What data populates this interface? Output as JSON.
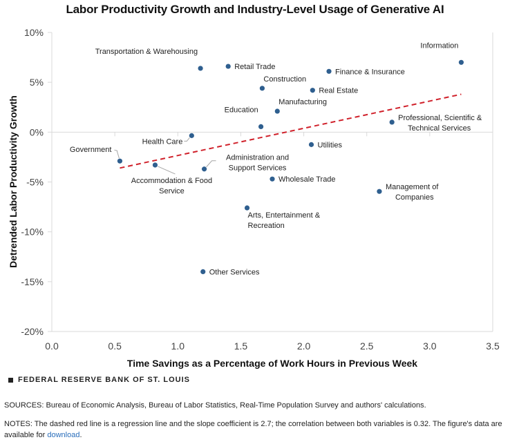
{
  "chart_data": {
    "type": "scatter",
    "title": "Labor Productivity Growth and Industry-Level Usage of Generative AI",
    "xlabel": "Time Savings as a Percentage of Work Hours in Previous Week",
    "ylabel": "Detrended Labor Productivity Growth",
    "xlim": [
      0.0,
      3.5
    ],
    "ylim": [
      -20,
      10
    ],
    "x_ticks": [
      0.0,
      0.5,
      1.0,
      1.5,
      2.0,
      2.5,
      3.0,
      3.5
    ],
    "x_tick_labels": [
      "0.0",
      "0.5",
      "1.0",
      "1.5",
      "2.0",
      "2.5",
      "3.0",
      "3.5"
    ],
    "y_ticks": [
      10,
      5,
      0,
      -5,
      -10,
      -15,
      -20
    ],
    "y_tick_labels": [
      "10%",
      "5%",
      "0%",
      "-5%",
      "-10%",
      "-15%",
      "-20%"
    ],
    "grid": false,
    "point_color": "#2f5f8f",
    "points": [
      {
        "name": "Transportation & Warehousing",
        "x": 1.18,
        "y": 6.4,
        "label_lines": [
          "Transportation & Warehousing"
        ],
        "label_pos": "top-left"
      },
      {
        "name": "Retail Trade",
        "x": 1.4,
        "y": 6.6,
        "label_lines": [
          "Retail Trade"
        ],
        "label_pos": "right"
      },
      {
        "name": "Finance & Insurance",
        "x": 2.2,
        "y": 6.1,
        "label_lines": [
          "Finance & Insurance"
        ],
        "label_pos": "right"
      },
      {
        "name": "Information",
        "x": 3.25,
        "y": 7.0,
        "label_lines": [
          "Information"
        ],
        "label_pos": "top-left"
      },
      {
        "name": "Construction",
        "x": 1.67,
        "y": 4.4,
        "label_lines": [
          "Construction"
        ],
        "label_pos": "top-right"
      },
      {
        "name": "Real Estate",
        "x": 2.07,
        "y": 4.2,
        "label_lines": [
          "Real Estate"
        ],
        "label_pos": "right"
      },
      {
        "name": "Manufacturing",
        "x": 1.79,
        "y": 2.1,
        "label_lines": [
          "Manufacturing"
        ],
        "label_pos": "top-right"
      },
      {
        "name": "Education",
        "x": 1.66,
        "y": 0.55,
        "label_lines": [
          "Education"
        ],
        "label_pos": "top-left"
      },
      {
        "name": "Professional, Scientific & Technical Services",
        "x": 2.7,
        "y": 1.0,
        "label_lines": [
          "Professional, Scientific &",
          "Technical Services"
        ],
        "label_pos": "right"
      },
      {
        "name": "Health Care",
        "x": 1.11,
        "y": -0.35,
        "label_lines": [
          "Health Care"
        ],
        "label_pos": "left-leader"
      },
      {
        "name": "Utilities",
        "x": 2.06,
        "y": -1.25,
        "label_lines": [
          "Utilities"
        ],
        "label_pos": "right"
      },
      {
        "name": "Government",
        "x": 0.54,
        "y": -2.9,
        "label_lines": [
          "Government"
        ],
        "label_pos": "top-left-leader"
      },
      {
        "name": "Accommodation & Food Service",
        "x": 0.82,
        "y": -3.3,
        "label_lines": [
          "Accommodation  & Food",
          "Service"
        ],
        "label_pos": "bottom-leader"
      },
      {
        "name": "Administration and Support Services",
        "x": 1.21,
        "y": -3.7,
        "label_lines": [
          "Administration and",
          "Support  Services"
        ],
        "label_pos": "top-right-leader"
      },
      {
        "name": "Wholesale Trade",
        "x": 1.75,
        "y": -4.7,
        "label_lines": [
          "Wholesale Trade"
        ],
        "label_pos": "right"
      },
      {
        "name": "Management of Companies",
        "x": 2.6,
        "y": -5.95,
        "label_lines": [
          "Management of",
          "Companies"
        ],
        "label_pos": "right"
      },
      {
        "name": "Arts, Entertainment & Recreation",
        "x": 1.55,
        "y": -7.6,
        "label_lines": [
          "Arts, Entertainment &",
          "Recreation"
        ],
        "label_pos": "bottom-right"
      },
      {
        "name": "Other Services",
        "x": 1.2,
        "y": -14.0,
        "label_lines": [
          "Other Services"
        ],
        "label_pos": "right"
      }
    ],
    "regression_line": {
      "style": "dashed",
      "color": "#d0202a",
      "start": {
        "x": 0.54,
        "y": -3.6
      },
      "end": {
        "x": 3.25,
        "y": 3.8
      }
    },
    "legend": null
  },
  "footer": {
    "brand": "FEDERAL RESERVE BANK OF ST. LOUIS",
    "sources": "SOURCES: Bureau of Economic Analysis, Bureau of Labor Statistics, Real-Time Population Survey and authors' calculations.",
    "notes_text": "NOTES: The dashed red line is a regression line and the slope coefficient is 2.7; the correlation between both variables is 0.32. The figure's data are available for ",
    "notes_link": "download",
    "notes_end": "."
  }
}
